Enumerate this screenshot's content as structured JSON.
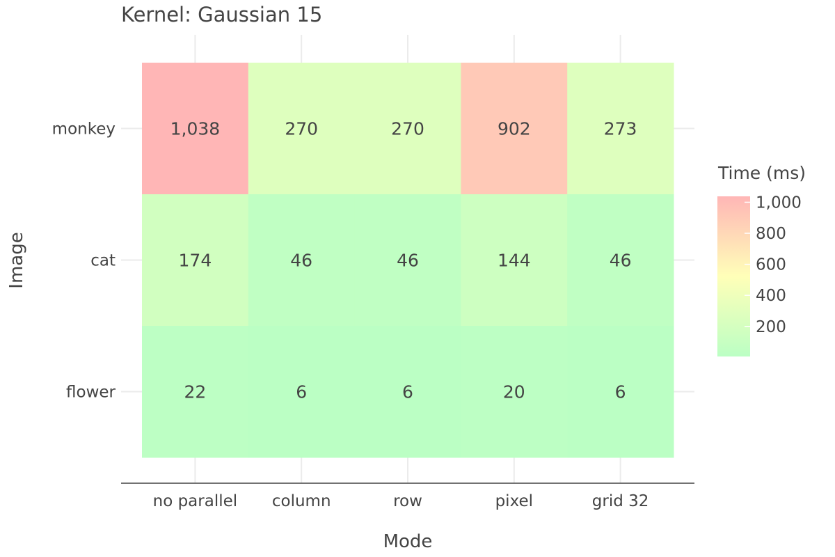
{
  "chart_data": {
    "type": "heatmap",
    "title": "Kernel: Gaussian 15",
    "xlabel": "Mode",
    "ylabel": "Image",
    "x_categories": [
      "no parallel",
      "column",
      "row",
      "pixel",
      "grid 32"
    ],
    "y_categories": [
      "monkey",
      "cat",
      "flower"
    ],
    "values": [
      [
        1038,
        270,
        270,
        902,
        273
      ],
      [
        174,
        46,
        46,
        144,
        46
      ],
      [
        22,
        6,
        6,
        20,
        6
      ]
    ],
    "value_labels": [
      [
        "1,038",
        "270",
        "270",
        "902",
        "273"
      ],
      [
        "174",
        "46",
        "46",
        "144",
        "46"
      ],
      [
        "22",
        "6",
        "6",
        "20",
        "6"
      ]
    ],
    "colorbar": {
      "title": "Time (ms)",
      "range": [
        6,
        1038
      ],
      "ticks": [
        200,
        400,
        600,
        800,
        1000
      ],
      "tick_labels": [
        "200",
        "400",
        "600",
        "800",
        "1,000"
      ],
      "colors": [
        "#bbffc4",
        "#ffffb8",
        "#ffb6b6"
      ]
    },
    "grid": true,
    "legend_position": "right"
  }
}
